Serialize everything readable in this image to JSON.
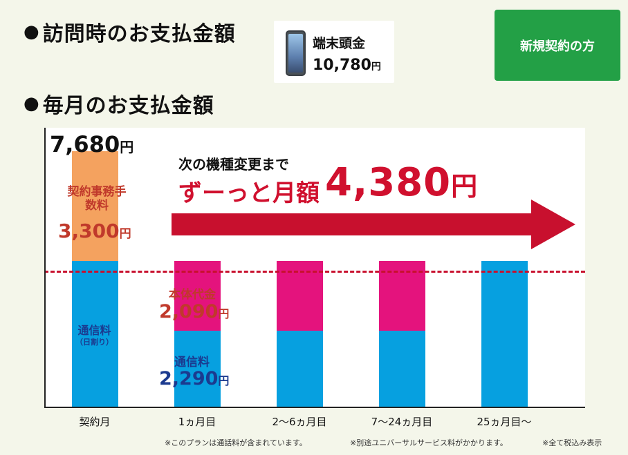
{
  "headings": {
    "visit_payment": "訪問時のお支払金額",
    "monthly_payment": "毎月のお支払金額",
    "bullet": "●"
  },
  "device": {
    "label": "端末頭金",
    "price": "10,780",
    "yen": "円"
  },
  "new_contract_button": "新規契約の方",
  "promo": {
    "line1": "次の機種変更まで",
    "line2": "ずーっと月額",
    "price": "4,380",
    "yen": "円"
  },
  "labels": {
    "total_first": "7,680",
    "yen": "円",
    "fee_label": "契約事務手数料",
    "fee_amount": "3,300",
    "comm_first": "通信料",
    "comm_first_sub": "（日割り）",
    "device_fee_label": "本体代金",
    "device_fee_amount": "2,090",
    "comm_label": "通信料",
    "comm_amount": "2,290"
  },
  "footnotes": [
    "※このプランは通話料が含まれています。",
    "※別途ユニバーサルサービス料がかかります。",
    "※全て税込み表示"
  ],
  "colors": {
    "communication": "#06a0e0",
    "device_fee": "#e4137d",
    "contract_fee": "#f4a25f",
    "accent_red": "#d0102e",
    "button_green": "#23a046"
  },
  "chart_data": {
    "type": "bar",
    "stacked": true,
    "categories": [
      "契約月",
      "1ヵ月目",
      "2～6ヵ月目",
      "7～24ヵ月目",
      "25ヵ月目～"
    ],
    "series": [
      {
        "name": "通信料",
        "values": [
          4380,
          2290,
          2290,
          2290,
          4380
        ]
      },
      {
        "name": "本体代金",
        "values": [
          0,
          2090,
          2090,
          2090,
          0
        ]
      },
      {
        "name": "契約事務手数料",
        "values": [
          3300,
          0,
          0,
          0,
          0
        ]
      }
    ],
    "reference_line": 4380,
    "ylim": [
      0,
      8400
    ],
    "grid": false
  }
}
